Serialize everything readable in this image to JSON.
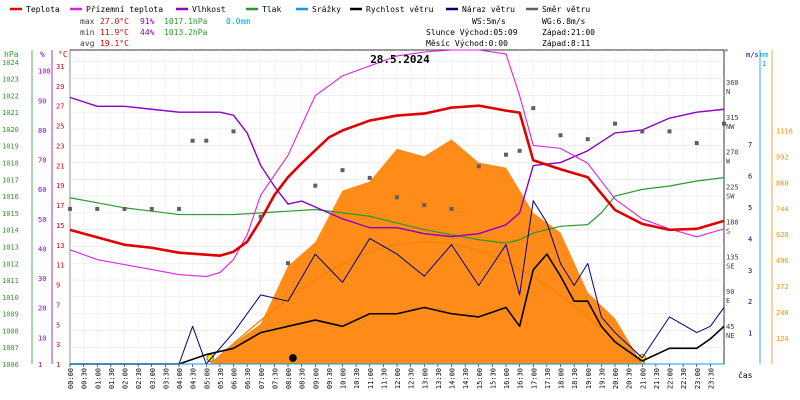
{
  "legend": [
    {
      "label": "Teplota",
      "color": "#e00000"
    },
    {
      "label": "Přízemní teplota",
      "color": "#e020e0"
    },
    {
      "label": "Vlhkost",
      "color": "#8a00c8"
    },
    {
      "label": "Tlak",
      "color": "#2a9a2a"
    },
    {
      "label": "Srážky",
      "color": "#00a0e0"
    },
    {
      "label": "Rychlost větru",
      "color": "#000000"
    },
    {
      "label": "Náraz větru",
      "color": "#000080"
    },
    {
      "label": "Směr větru",
      "color": "#606060"
    }
  ],
  "stats": {
    "max": {
      "label": "max",
      "temp": "27.0°C",
      "hum": "91%",
      "press": "1017.1hPa",
      "rain": "0.0mm"
    },
    "min": {
      "label": "min",
      "temp": "11.9°C",
      "hum": "44%",
      "press": "1013.2hPa"
    },
    "avg": {
      "label": "avg",
      "temp": "19.1°C"
    }
  },
  "info": {
    "ws": "WS:5m/s",
    "wg": "WG:6.8m/s",
    "sun": "Slunce Východ:05:09",
    "sun_set": "Západ:21:00",
    "moon": "Měsíc  Východ:0:00",
    "moon_set": "Západ:8:11"
  },
  "colors": {
    "temp": "#e00000",
    "ground": "#e020e0",
    "hum": "#8a00c8",
    "press": "#2a9a2a",
    "rain": "#00a0e0",
    "wind": "#000000",
    "gust": "#000080",
    "dir": "#606060",
    "sun": "#f08000",
    "solar": "#ff7f00"
  },
  "chart_data": {
    "type": "line",
    "title": "28.5.2024",
    "xlabel": "čas",
    "x_ticks": [
      "00:00",
      "00:30",
      "01:00",
      "01:30",
      "02:00",
      "02:30",
      "03:00",
      "03:30",
      "04:00",
      "04:30",
      "05:00",
      "05:30",
      "06:00",
      "06:30",
      "07:00",
      "07:30",
      "08:00",
      "08:30",
      "09:00",
      "09:30",
      "10:00",
      "10:30",
      "11:00",
      "11:30",
      "12:00",
      "12:30",
      "13:00",
      "13:30",
      "14:00",
      "14:30",
      "15:00",
      "15:30",
      "16:00",
      "16:30",
      "17:00",
      "17:30",
      "18:00",
      "18:30",
      "19:00",
      "19:30",
      "20:00",
      "20:30",
      "21:00",
      "21:30",
      "22:00",
      "22:30",
      "23:00",
      "23:30"
    ],
    "axes": {
      "hpa": {
        "unit": "hPa",
        "ticks": [
          "1024",
          "1023",
          "1022",
          "1021",
          "1020",
          "1019",
          "1018",
          "1017",
          "1016",
          "1015",
          "1014",
          "1013",
          "1012",
          "1011",
          "1010",
          "1009",
          "1008",
          "1007",
          "1006"
        ],
        "range": [
          1006,
          1024.7
        ]
      },
      "pct": {
        "unit": "%",
        "ticks": [
          "100",
          "90",
          "80",
          "70",
          "60",
          "50",
          "40",
          "30",
          "20",
          "10",
          "1"
        ],
        "range": [
          1,
          107
        ]
      },
      "degc": {
        "unit": "°C",
        "ticks": [
          "31",
          "29",
          "27",
          "25",
          "23",
          "21",
          "19",
          "17",
          "15",
          "13",
          "11",
          "9",
          "7",
          "5",
          "3",
          "1"
        ],
        "range": [
          1,
          32.6
        ]
      },
      "dir": {
        "unit": "°",
        "ticks": [
          "360",
          "315",
          "270",
          "225",
          "180",
          "135",
          "90",
          "45"
        ],
        "labels": [
          "N",
          "NW",
          "W",
          "SW",
          "S",
          "SE",
          "E",
          "NE"
        ],
        "range": [
          0,
          405
        ]
      },
      "ms": {
        "unit": "m/s",
        "ticks": [
          "7",
          "6",
          "5",
          "4",
          "3",
          "2",
          "1"
        ],
        "range": [
          0,
          10
        ]
      },
      "mm": {
        "unit": "mm",
        "ticks": [
          "1"
        ],
        "range": [
          0,
          1
        ]
      },
      "wm2": {
        "unit": "",
        "ticks": [
          "1116",
          "992",
          "868",
          "744",
          "620",
          "496",
          "372",
          "248",
          "124"
        ],
        "range": [
          0,
          1500
        ]
      }
    },
    "series": [
      {
        "name": "Teplota",
        "axis": "degc",
        "x": [
          0,
          2,
          3,
          4,
          5,
          5.5,
          6,
          6.5,
          7,
          7.5,
          8,
          8.5,
          9,
          9.5,
          10,
          11,
          12,
          13,
          14,
          15,
          16,
          16.5,
          17,
          18,
          19,
          20,
          21,
          22,
          23,
          24
        ],
        "y": [
          14.5,
          13,
          12.7,
          12.2,
          12.0,
          11.9,
          12.3,
          13.3,
          15.5,
          18,
          19.8,
          21.2,
          22.5,
          23.8,
          24.5,
          25.5,
          26.0,
          26.2,
          26.8,
          27.0,
          26.5,
          26.3,
          21.5,
          20.6,
          19.8,
          16.5,
          15.1,
          14.5,
          14.6,
          15.4
        ]
      },
      {
        "name": "Přízemní teplota",
        "axis": "degc",
        "x": [
          0,
          1,
          2,
          3,
          4,
          5,
          5.5,
          6,
          6.5,
          7,
          7.5,
          8,
          8.5,
          9,
          10,
          11,
          12,
          13,
          14,
          15,
          16,
          16.5,
          17,
          18,
          19,
          20,
          21,
          22,
          23,
          24
        ],
        "y": [
          12.5,
          11.5,
          11.0,
          10.5,
          10.0,
          9.8,
          10.2,
          11.5,
          14,
          18,
          20,
          22,
          25,
          28,
          30,
          31,
          32,
          32.4,
          32.6,
          32.6,
          32.2,
          28,
          23,
          22.7,
          21.2,
          17.6,
          15.6,
          14.6,
          13.8,
          14.6
        ]
      },
      {
        "name": "Vlhkost",
        "axis": "pct",
        "x": [
          0,
          1,
          2,
          3,
          4,
          5,
          5.5,
          6,
          6.5,
          7,
          7.5,
          8,
          8.5,
          9,
          10,
          11,
          12,
          13,
          14,
          15,
          16,
          16.5,
          17,
          18,
          19,
          20,
          21,
          22,
          23,
          24
        ],
        "y": [
          91,
          88,
          88,
          87,
          86,
          86,
          86,
          85,
          79,
          68,
          61,
          55,
          56,
          54,
          50,
          47,
          47,
          45,
          44,
          45,
          48,
          52,
          68,
          69,
          73,
          79,
          80,
          84,
          86,
          87
        ]
      },
      {
        "name": "Tlak",
        "axis": "hpa",
        "x": [
          0,
          1,
          2,
          3,
          4,
          5,
          6,
          7,
          8,
          9,
          10,
          11,
          12,
          13,
          14,
          15,
          16,
          16.5,
          17,
          18,
          19,
          19.5,
          20,
          21,
          22,
          23,
          24
        ],
        "y": [
          1015.9,
          1015.6,
          1015.3,
          1015.1,
          1014.9,
          1014.9,
          1014.9,
          1015.0,
          1015.1,
          1015.2,
          1015.0,
          1014.8,
          1014.4,
          1014.0,
          1013.7,
          1013.4,
          1013.2,
          1013.4,
          1013.8,
          1014.2,
          1014.3,
          1015.0,
          1016.0,
          1016.4,
          1016.6,
          1016.9,
          1017.1
        ]
      },
      {
        "name": "Srážky",
        "axis": "mm",
        "x": [
          0,
          24
        ],
        "y": [
          0,
          0
        ]
      },
      {
        "name": "Rychlost větru",
        "axis": "ms",
        "x": [
          0,
          4,
          5,
          6,
          7,
          8,
          9,
          10,
          11,
          12,
          13,
          14,
          15,
          16,
          16.5,
          17,
          17.5,
          18,
          18.5,
          19,
          19.5,
          20,
          21,
          22,
          23,
          23.5,
          24
        ],
        "y": [
          0,
          0,
          0.3,
          0.5,
          1.0,
          1.2,
          1.4,
          1.2,
          1.6,
          1.6,
          1.8,
          1.6,
          1.5,
          1.8,
          1.2,
          3.0,
          3.5,
          2.8,
          2.0,
          2.0,
          1.2,
          0.7,
          0.1,
          0.5,
          0.5,
          0.8,
          1.2
        ]
      },
      {
        "name": "Náraz větru",
        "axis": "ms",
        "x": [
          0,
          4,
          4.5,
          5,
          6,
          7,
          8,
          9,
          10,
          11,
          12,
          13,
          14,
          15,
          16,
          16.5,
          17,
          17.5,
          18,
          18.5,
          19,
          19.5,
          20,
          21,
          22,
          23,
          23.5,
          24
        ],
        "y": [
          0,
          0,
          1.2,
          0,
          1.0,
          2.2,
          2.0,
          3.5,
          2.6,
          4.0,
          3.5,
          2.8,
          3.8,
          2.5,
          3.8,
          2.2,
          5.2,
          4.5,
          3.2,
          2.5,
          3.2,
          1.5,
          1.0,
          0.2,
          1.5,
          1.0,
          1.2,
          1.8
        ]
      },
      {
        "name": "Směr větru",
        "axis": "dir",
        "x": [
          0,
          1,
          2,
          3,
          4,
          4.5,
          5,
          6,
          7,
          8,
          9,
          10,
          11,
          12,
          13,
          14,
          15,
          16,
          16.5,
          17,
          18,
          19,
          20,
          21,
          22,
          23,
          24
        ],
        "y": [
          200,
          200,
          200,
          200,
          200,
          288,
          288,
          300,
          190,
          130,
          230,
          250,
          240,
          215,
          205,
          200,
          255,
          270,
          275,
          330,
          295,
          290,
          310,
          300,
          300,
          285,
          310
        ]
      },
      {
        "name": "Solar",
        "axis": "wm2",
        "x": [
          5.2,
          6,
          7,
          8,
          9,
          10,
          11,
          12,
          13,
          14,
          15,
          16,
          17,
          18,
          19,
          20,
          21,
          21.1
        ],
        "y": [
          0,
          60,
          230,
          430,
          620,
          790,
          910,
          990,
          1030,
          1035,
          1000,
          900,
          760,
          590,
          380,
          180,
          20,
          0
        ]
      }
    ]
  }
}
